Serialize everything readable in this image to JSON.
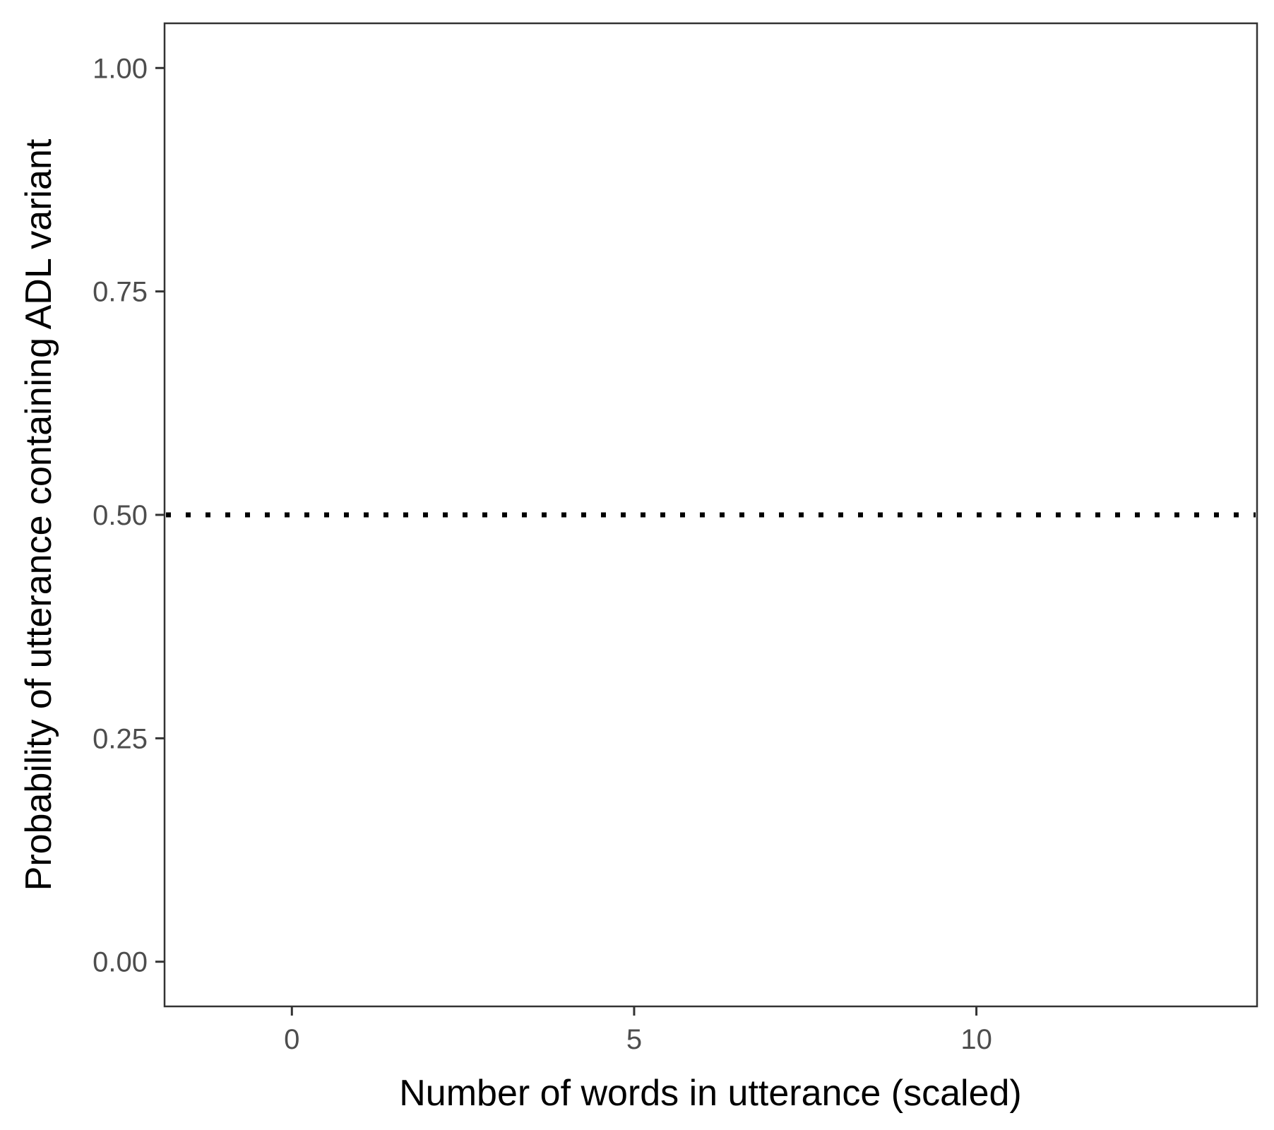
{
  "chart_data": {
    "type": "line",
    "title": "",
    "xlabel": "Number of words in utterance (scaled)",
    "ylabel": "Probability of utterance containing ADL variant",
    "xlim": [
      -1.86,
      14.1
    ],
    "ylim": [
      -0.05,
      1.05
    ],
    "x_ticks": [
      0,
      5,
      10
    ],
    "x_tick_labels": [
      "0",
      "5",
      "10"
    ],
    "y_ticks": [
      0,
      0.25,
      0.5,
      0.75,
      1
    ],
    "y_tick_labels": [
      "0.00",
      "0.25",
      "0.50",
      "0.75",
      "1.00"
    ],
    "grid": false,
    "legend": "none",
    "series": [],
    "reference_lines": [
      {
        "orientation": "horizontal",
        "y": 0.5,
        "style": "dotted",
        "color": "#000000"
      }
    ],
    "colors": {
      "axis": "#333333",
      "tick_text": "#4d4d4d",
      "title_text": "#000000",
      "background": "#ffffff"
    }
  }
}
